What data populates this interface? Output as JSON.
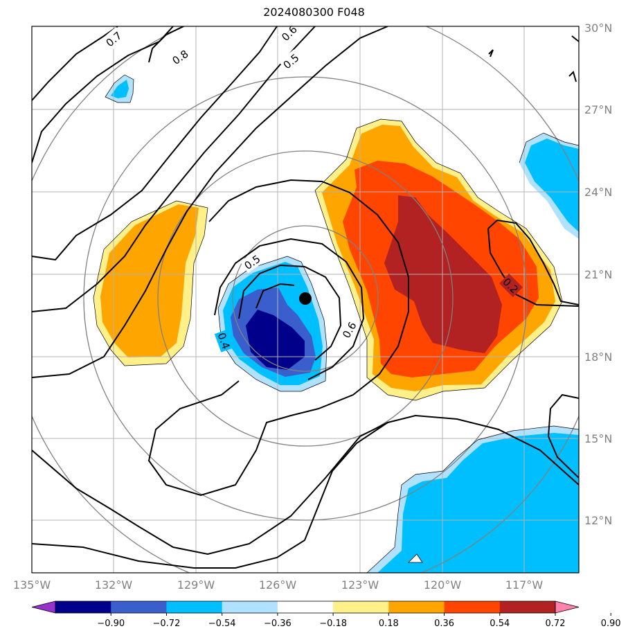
{
  "title": "2024080300 F048",
  "lat_labels": [
    "30°N",
    "27°N",
    "24°N",
    "21°N",
    "18°N",
    "15°N",
    "12°N"
  ],
  "lon_labels": [
    "135°W",
    "132°W",
    "129°W",
    "126°W",
    "123°W",
    "120°W",
    "117°W"
  ],
  "colorbar": {
    "ticks": [
      "−0.90",
      "−0.72",
      "−0.54",
      "−0.36",
      "−0.18",
      "0.18",
      "0.36",
      "0.54",
      "0.72",
      "0.90"
    ],
    "colors": [
      "#9932cc",
      "#00008b",
      "#3a5fcd",
      "#00bfff",
      "#b0e2ff",
      "#ffffff",
      "#fff08a",
      "#ffa500",
      "#ff4500",
      "#b22222",
      "#ff82ab"
    ]
  },
  "contour_labels": [
    "0.7",
    "0.8",
    "0.6",
    "0.5",
    "0.5",
    "0.4",
    "0.6",
    "0.2"
  ],
  "center_marker": "storm-center",
  "colors": {
    "grid": "#b3b3b3",
    "ring": "#808080",
    "contour": "#000000"
  }
}
